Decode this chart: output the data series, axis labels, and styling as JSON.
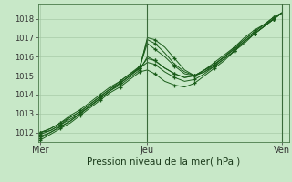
{
  "title": "Pression niveau de la mer( hPa )",
  "xlabel_ticks": [
    "Mer",
    "Jeu",
    "Ven"
  ],
  "xlabel_tick_positions": [
    0,
    0.43,
    0.97
  ],
  "ylim": [
    1011.5,
    1018.8
  ],
  "yticks": [
    1012,
    1013,
    1014,
    1015,
    1016,
    1017,
    1018
  ],
  "bg_color": "#c8e8c8",
  "grid_color": "#a0c4a0",
  "line_color": "#1a5c1a",
  "marker_color": "#1a5c1a",
  "lines": [
    {
      "x": [
        0.0,
        0.04,
        0.08,
        0.12,
        0.16,
        0.2,
        0.24,
        0.28,
        0.32,
        0.36,
        0.4,
        0.43,
        0.46,
        0.5,
        0.54,
        0.58,
        0.62,
        0.66,
        0.7,
        0.74,
        0.78,
        0.82,
        0.86,
        0.9,
        0.94,
        0.97
      ],
      "y": [
        1012.0,
        1012.1,
        1012.4,
        1012.7,
        1013.0,
        1013.4,
        1013.8,
        1014.2,
        1014.6,
        1015.0,
        1015.5,
        1016.9,
        1016.7,
        1016.2,
        1015.6,
        1015.2,
        1015.0,
        1015.2,
        1015.5,
        1015.9,
        1016.3,
        1016.8,
        1017.2,
        1017.6,
        1018.0,
        1018.3
      ]
    },
    {
      "x": [
        0.0,
        0.04,
        0.08,
        0.12,
        0.16,
        0.2,
        0.24,
        0.28,
        0.32,
        0.36,
        0.4,
        0.43,
        0.46,
        0.5,
        0.54,
        0.58,
        0.62,
        0.66,
        0.7,
        0.74,
        0.78,
        0.82,
        0.86,
        0.9,
        0.94,
        0.97
      ],
      "y": [
        1011.8,
        1012.0,
        1012.3,
        1012.6,
        1013.0,
        1013.4,
        1013.8,
        1014.2,
        1014.6,
        1015.0,
        1015.4,
        1017.0,
        1016.9,
        1016.5,
        1015.9,
        1015.3,
        1015.0,
        1015.3,
        1015.6,
        1016.0,
        1016.4,
        1016.8,
        1017.2,
        1017.6,
        1018.0,
        1018.3
      ]
    },
    {
      "x": [
        0.0,
        0.04,
        0.08,
        0.12,
        0.16,
        0.2,
        0.24,
        0.28,
        0.32,
        0.36,
        0.4,
        0.43,
        0.46,
        0.5,
        0.54,
        0.58,
        0.62,
        0.66,
        0.7,
        0.74,
        0.78,
        0.82,
        0.86,
        0.9,
        0.94,
        0.97
      ],
      "y": [
        1011.9,
        1012.1,
        1012.4,
        1012.8,
        1013.1,
        1013.5,
        1013.9,
        1014.3,
        1014.7,
        1015.1,
        1015.5,
        1016.7,
        1016.4,
        1016.0,
        1015.5,
        1015.1,
        1015.0,
        1015.2,
        1015.6,
        1016.0,
        1016.5,
        1016.9,
        1017.3,
        1017.7,
        1018.1,
        1018.3
      ]
    },
    {
      "x": [
        0.0,
        0.04,
        0.08,
        0.12,
        0.16,
        0.2,
        0.24,
        0.28,
        0.32,
        0.36,
        0.4,
        0.43,
        0.46,
        0.5,
        0.54,
        0.58,
        0.62,
        0.66,
        0.7,
        0.74,
        0.78,
        0.82,
        0.86,
        0.9,
        0.94,
        0.97
      ],
      "y": [
        1012.0,
        1012.2,
        1012.5,
        1012.8,
        1013.1,
        1013.5,
        1013.9,
        1014.3,
        1014.6,
        1015.0,
        1015.4,
        1015.9,
        1015.8,
        1015.4,
        1015.1,
        1014.9,
        1015.0,
        1015.3,
        1015.6,
        1016.0,
        1016.4,
        1016.9,
        1017.3,
        1017.7,
        1018.0,
        1018.3
      ]
    },
    {
      "x": [
        0.0,
        0.04,
        0.08,
        0.12,
        0.16,
        0.2,
        0.24,
        0.28,
        0.32,
        0.36,
        0.4,
        0.43,
        0.46,
        0.5,
        0.54,
        0.58,
        0.62,
        0.66,
        0.7,
        0.74,
        0.78,
        0.82,
        0.86,
        0.9,
        0.94,
        0.97
      ],
      "y": [
        1012.0,
        1012.2,
        1012.5,
        1012.9,
        1013.2,
        1013.6,
        1014.0,
        1014.4,
        1014.7,
        1015.1,
        1015.4,
        1015.7,
        1015.6,
        1015.2,
        1014.9,
        1014.7,
        1014.8,
        1015.1,
        1015.5,
        1015.9,
        1016.3,
        1016.8,
        1017.2,
        1017.6,
        1018.0,
        1018.3
      ]
    },
    {
      "x": [
        0.0,
        0.04,
        0.08,
        0.12,
        0.16,
        0.2,
        0.24,
        0.28,
        0.32,
        0.36,
        0.4,
        0.43,
        0.46,
        0.5,
        0.54,
        0.58,
        0.62,
        0.66,
        0.7,
        0.74,
        0.78,
        0.82,
        0.86,
        0.9,
        0.94,
        0.97
      ],
      "y": [
        1011.7,
        1012.0,
        1012.3,
        1012.6,
        1013.0,
        1013.4,
        1013.8,
        1014.2,
        1014.5,
        1014.9,
        1015.3,
        1016.0,
        1015.8,
        1015.4,
        1015.1,
        1014.9,
        1015.0,
        1015.3,
        1015.7,
        1016.1,
        1016.5,
        1017.0,
        1017.4,
        1017.7,
        1018.1,
        1018.3
      ]
    },
    {
      "x": [
        0.0,
        0.04,
        0.08,
        0.12,
        0.16,
        0.2,
        0.24,
        0.28,
        0.32,
        0.36,
        0.4,
        0.43,
        0.46,
        0.5,
        0.54,
        0.58,
        0.62,
        0.66,
        0.7,
        0.74,
        0.78,
        0.82,
        0.86,
        0.9,
        0.94,
        0.97
      ],
      "y": [
        1011.6,
        1011.9,
        1012.2,
        1012.5,
        1012.9,
        1013.3,
        1013.7,
        1014.1,
        1014.4,
        1014.8,
        1015.2,
        1015.3,
        1015.1,
        1014.7,
        1014.5,
        1014.4,
        1014.6,
        1015.0,
        1015.4,
        1015.8,
        1016.3,
        1016.7,
        1017.2,
        1017.6,
        1018.0,
        1018.3
      ]
    }
  ]
}
